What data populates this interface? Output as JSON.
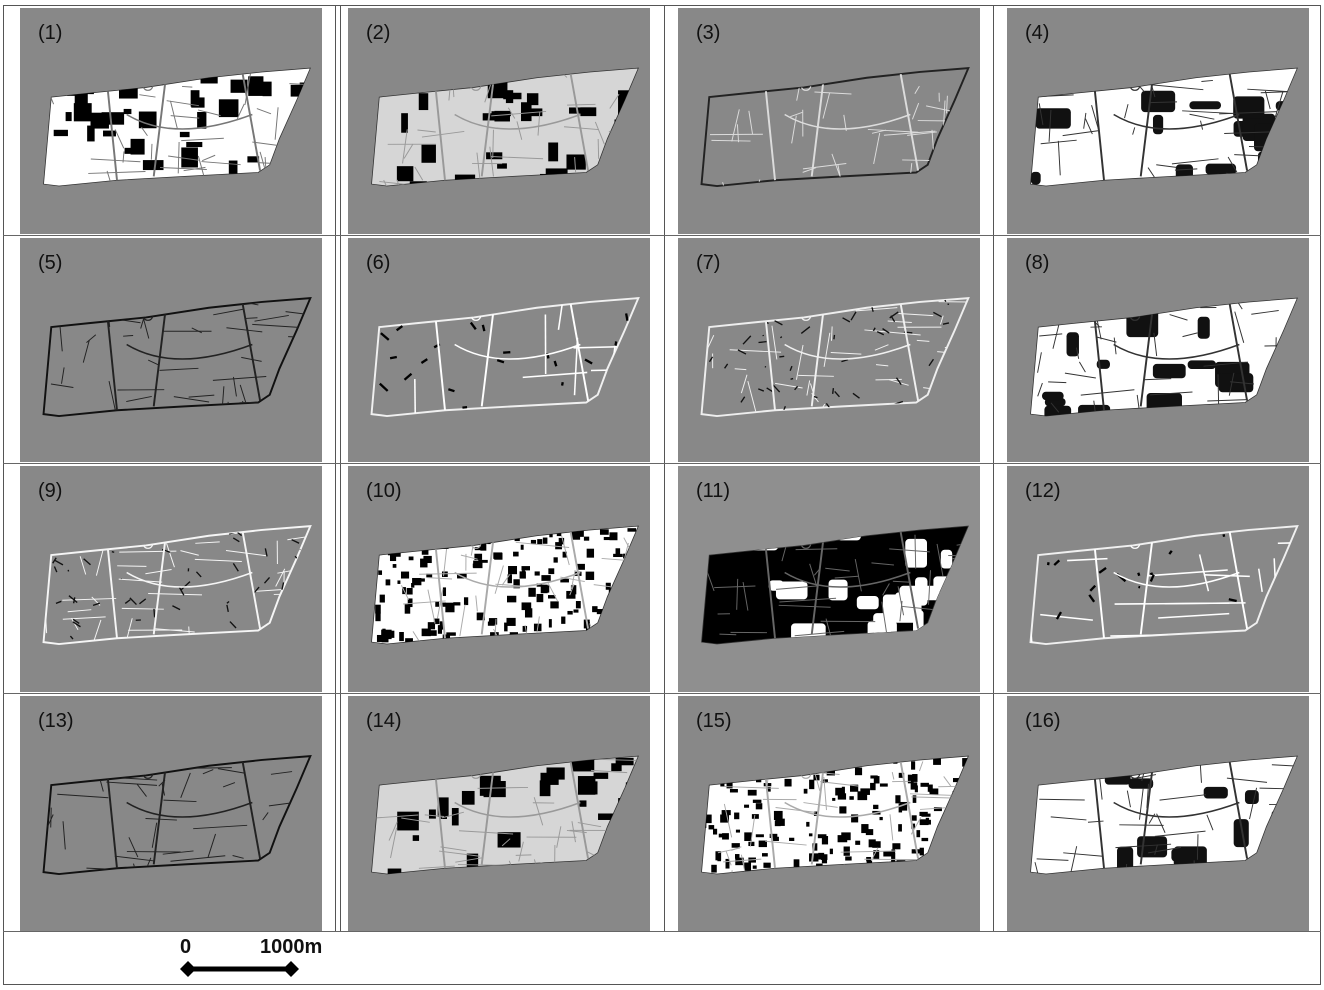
{
  "panels": [
    {
      "label": "(1)",
      "style": "bw_blocks",
      "bg": "#888888"
    },
    {
      "label": "(2)",
      "style": "light_blocks",
      "bg": "#888888"
    },
    {
      "label": "(3)",
      "style": "gray_streets",
      "bg": "#888888"
    },
    {
      "label": "(4)",
      "style": "white_dense",
      "bg": "#888888"
    },
    {
      "label": "(5)",
      "style": "dark_streets",
      "bg": "#888888"
    },
    {
      "label": "(6)",
      "style": "white_major",
      "bg": "#888888"
    },
    {
      "label": "(7)",
      "style": "mixed_streets",
      "bg": "#888888"
    },
    {
      "label": "(8)",
      "style": "white_dense",
      "bg": "#888888"
    },
    {
      "label": "(9)",
      "style": "white_streets",
      "bg": "#888888"
    },
    {
      "label": "(10)",
      "style": "speckled",
      "bg": "#888888"
    },
    {
      "label": "(11)",
      "style": "black_dense",
      "bg": "#8f8f8f"
    },
    {
      "label": "(12)",
      "style": "white_major",
      "bg": "#888888"
    },
    {
      "label": "(13)",
      "style": "dark_streets",
      "bg": "#888888"
    },
    {
      "label": "(14)",
      "style": "light_blocks",
      "bg": "#888888"
    },
    {
      "label": "(15)",
      "style": "speckled",
      "bg": "#888888"
    },
    {
      "label": "(16)",
      "style": "white_dense",
      "bg": "#888888"
    }
  ],
  "scale_bar": {
    "start_label": "0",
    "end_label": "1000m"
  }
}
